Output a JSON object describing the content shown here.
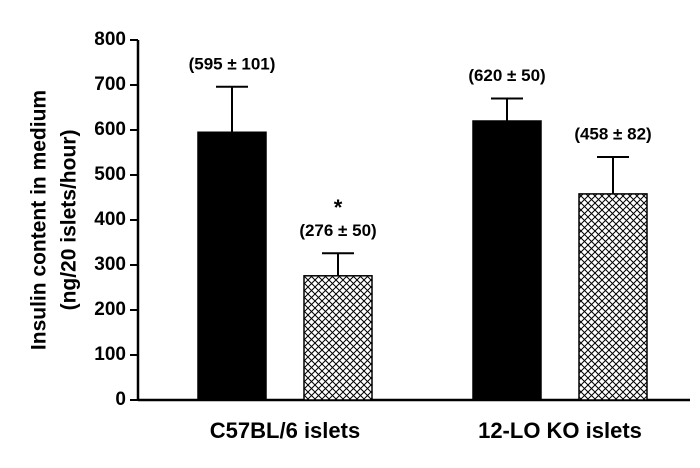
{
  "chart_data": {
    "type": "bar",
    "ylabel": [
      "Insulin content in medium",
      "(ng/20 islets/hour)"
    ],
    "categories": [
      "C57BL/6 islets",
      "12-LO KO islets"
    ],
    "series": [
      {
        "color": "#000000",
        "hatch": false,
        "values": [
          595,
          620
        ],
        "errors": [
          101,
          50
        ],
        "value_labels": [
          "(595 ± 101)",
          "(620 ± 50)"
        ]
      },
      {
        "color": "#000000",
        "hatch": true,
        "values": [
          276,
          458
        ],
        "errors": [
          50,
          82
        ],
        "value_labels": [
          "(276 ± 50)",
          "(458 ± 82)"
        ]
      }
    ],
    "annotations": [
      "*"
    ],
    "ylim": [
      0,
      800
    ],
    "yticks": [
      0,
      100,
      200,
      300,
      400,
      500,
      600,
      700,
      800
    ],
    "grid": false
  }
}
